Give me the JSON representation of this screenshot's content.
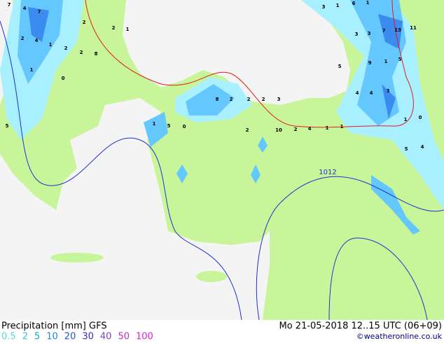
{
  "header": {
    "title": "Precipitation [mm] GFS",
    "date": "Mo 21-05-2018 12..15 UTC (06+09)",
    "credit": "©weatheronline.co.uk"
  },
  "legend": {
    "levels": [
      0.5,
      2,
      5,
      10,
      20,
      30,
      40,
      50,
      100
    ],
    "colors": [
      "#50dcdc",
      "#30c8e0",
      "#10a8d8",
      "#2080f0",
      "#2050d8",
      "#3030c0",
      "#8040d0",
      "#c030c0",
      "#e020d0"
    ]
  },
  "isobar_label": "1012",
  "map_labels": [
    7,
    4,
    7,
    2,
    2,
    1,
    2,
    2,
    4,
    1,
    2,
    8,
    1,
    0,
    5,
    3,
    1,
    6,
    1,
    13,
    11,
    3,
    7,
    3,
    5,
    9,
    1,
    5,
    4,
    4,
    3,
    8,
    2,
    2,
    2,
    3,
    2,
    10,
    2,
    4,
    1,
    1,
    1,
    0,
    5,
    4,
    1,
    5,
    0
  ]
}
